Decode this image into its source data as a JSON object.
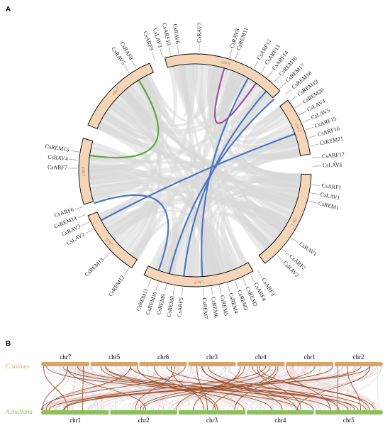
{
  "panels": [
    "A",
    "B"
  ],
  "circos": {
    "chromosomes": [
      {
        "id": "chr7",
        "start": 203,
        "end": 247
      },
      {
        "id": "chr6",
        "start": 255,
        "end": 317
      },
      {
        "id": "chr2",
        "start": 323,
        "end": 352
      },
      {
        "id": "chr1",
        "start": 2,
        "end": 53
      },
      {
        "id": "chr3",
        "start": 60,
        "end": 116
      },
      {
        "id": "chr5",
        "start": 123,
        "end": 157
      },
      {
        "id": "chr4",
        "start": 163,
        "end": 196
      }
    ],
    "genes": [
      {
        "name": "CsRAV5",
        "angle": 236
      },
      {
        "name": "CsRAF8",
        "angle": 240
      },
      {
        "name": "CsARF9",
        "angle": 250
      },
      {
        "name": "CsLAV3",
        "angle": 254
      },
      {
        "name": "CsARF10",
        "angle": 258
      },
      {
        "name": "CsRAV6",
        "angle": 262
      },
      {
        "name": "CsRAV7",
        "angle": 272
      },
      {
        "name": "CsRAV8",
        "angle": 287
      },
      {
        "name": "CsREM11",
        "angle": 290
      },
      {
        "name": "CsARF12",
        "angle": 300
      },
      {
        "name": "CsARF13",
        "angle": 304
      },
      {
        "name": "CsARF14",
        "angle": 308
      },
      {
        "name": "CsREM16",
        "angle": 312
      },
      {
        "name": "CsREM17",
        "angle": 316
      },
      {
        "name": "CsREM18",
        "angle": 320
      },
      {
        "name": "CsREM19",
        "angle": 324
      },
      {
        "name": "CsREM20",
        "angle": 328
      },
      {
        "name": "CsLAV4",
        "angle": 332
      },
      {
        "name": "CsLAV5",
        "angle": 336
      },
      {
        "name": "CsARF15",
        "angle": 340
      },
      {
        "name": "CsARF16",
        "angle": 344
      },
      {
        "name": "CsREM21",
        "angle": 348
      },
      {
        "name": "CsARF17",
        "angle": 354
      },
      {
        "name": "CsLAV6",
        "angle": 358
      },
      {
        "name": "CsARF1",
        "angle": 7
      },
      {
        "name": "CsLAV1",
        "angle": 11
      },
      {
        "name": "CsREM1",
        "angle": 15
      },
      {
        "name": "CsRAV1",
        "angle": 35
      },
      {
        "name": "CsARF2",
        "angle": 42
      },
      {
        "name": "CsRAV2",
        "angle": 46
      },
      {
        "name": "CsARF3",
        "angle": 58
      },
      {
        "name": "CsARF4",
        "angle": 62
      },
      {
        "name": "CsREM2",
        "angle": 66
      },
      {
        "name": "CsREM3",
        "angle": 70
      },
      {
        "name": "CsREM4",
        "angle": 74
      },
      {
        "name": "CsREM5",
        "angle": 78
      },
      {
        "name": "CsREM6",
        "angle": 82
      },
      {
        "name": "CsREM7",
        "angle": 86
      },
      {
        "name": "CsARF5",
        "angle": 96
      },
      {
        "name": "CsREM8",
        "angle": 100
      },
      {
        "name": "CsREM9",
        "angle": 104
      },
      {
        "name": "CsREM10",
        "angle": 108
      },
      {
        "name": "CsREM11",
        "angle": 112
      },
      {
        "name": "CsREM12",
        "angle": 124
      },
      {
        "name": "CsREM13",
        "angle": 136
      },
      {
        "name": "CsLAV2",
        "angle": 150
      },
      {
        "name": "CsRAV3",
        "angle": 154
      },
      {
        "name": "CsREM14",
        "angle": 158
      },
      {
        "name": "CsARF6",
        "angle": 162
      },
      {
        "name": "CsREM15",
        "angle": 189
      },
      {
        "name": "CsRAV4",
        "angle": 185
      },
      {
        "name": "CsARF7",
        "angle": 181
      }
    ],
    "links": [
      {
        "a": 238,
        "b": 188,
        "color": "#5aa83c"
      },
      {
        "a": 305,
        "b": 286,
        "color": "#a24a9a"
      },
      {
        "a": 312,
        "b": 96,
        "color": "#4a78c0"
      },
      {
        "a": 318,
        "b": 104,
        "color": "#4a78c0"
      },
      {
        "a": 340,
        "b": 152,
        "color": "#4a78c0"
      },
      {
        "a": 162,
        "b": 110,
        "color": "#4a78c0"
      },
      {
        "a": 300,
        "b": 86,
        "color": "#4a78c0"
      }
    ],
    "colors": {
      "band": "#f5d5b8",
      "band_stroke": "#000000",
      "background_links": "#d8d8d8"
    }
  },
  "synteny": {
    "top_species": "C.sativus",
    "bottom_species": "A.thaliana",
    "top_color": "#d9a46a",
    "bottom_color": "#8cc05a",
    "top_chromosomes": [
      "chr7",
      "chr5",
      "chr6",
      "chr3",
      "chr4",
      "chr1",
      "chr2"
    ],
    "bottom_chromosomes": [
      "chr1",
      "chr2",
      "chr3",
      "chr4",
      "chr5"
    ],
    "link_color": "#a0522d",
    "background_colors": [
      "#e0e0e0",
      "#f2c2c2"
    ]
  }
}
